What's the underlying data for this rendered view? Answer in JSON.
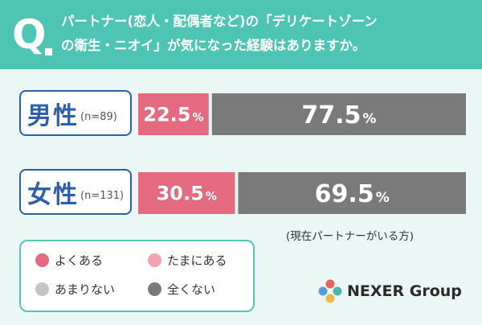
{
  "header": {
    "q_mark": "Q",
    "question_line1": "パートナー(恋人・配偶者など)の「デリケートゾーン",
    "question_line2": "の衛生・ニオイ」が気になった経験はありますか。"
  },
  "chart_data": {
    "type": "bar",
    "orientation": "horizontal",
    "stacked": true,
    "unit": "%",
    "categories": [
      {
        "label": "男性",
        "n_label": "(n=89)"
      },
      {
        "label": "女性",
        "n_label": "(n=131)"
      }
    ],
    "series": [
      {
        "name": "よくある",
        "values": [
          22.5,
          30.5
        ],
        "display": [
          "22.5",
          "30.5"
        ]
      },
      {
        "name": "全くない",
        "values": [
          77.5,
          69.5
        ],
        "display": [
          "77.5",
          "69.5"
        ]
      }
    ],
    "xlim": [
      0,
      100
    ],
    "grid": false,
    "legend_position": "bottom-left"
  },
  "legend": [
    {
      "label": "よくある",
      "color": "#e46a80"
    },
    {
      "label": "たまにある",
      "color": "#f2a2ae"
    },
    {
      "label": "あまりない",
      "color": "#c4c4c4"
    },
    {
      "label": "全くない",
      "color": "#7a7a7a"
    }
  ],
  "note": "(現在パートナーがいる方)",
  "brand": {
    "name": "NEXER Group"
  },
  "colors": {
    "header_bg": "#4ec4b4",
    "background": "#eaf7f5",
    "label_border": "#2c5fa8",
    "legend_border": "#57c3bd",
    "bar_often": "#e46a80",
    "bar_never": "#7a7a7a",
    "bar_text": "#ffffff"
  },
  "icons": {
    "brand_logo": "nexer-logo-icon"
  }
}
